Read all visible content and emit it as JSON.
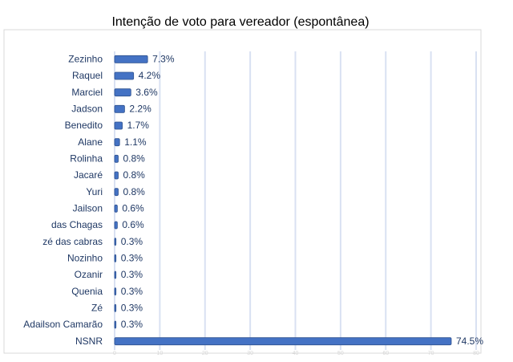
{
  "chart_data": {
    "type": "bar",
    "orientation": "horizontal",
    "title": "Intenção de voto para vereador (espontânea)",
    "categories": [
      "Zezinho",
      "Raquel",
      "Marciel",
      "Jadson",
      "Benedito",
      "Alane",
      "Rolinha",
      "Jacaré",
      "Yuri",
      "Jailson",
      "das Chagas",
      "zé das cabras",
      "Nozinho",
      "Ozanir",
      "Quenia",
      "Zé",
      "Adailson Camarão",
      "NSNR"
    ],
    "values": [
      7.3,
      4.2,
      3.6,
      2.2,
      1.7,
      1.1,
      0.8,
      0.8,
      0.8,
      0.6,
      0.6,
      0.3,
      0.3,
      0.3,
      0.3,
      0.3,
      0.3,
      74.5
    ],
    "value_labels": [
      "7.3%",
      "4.2%",
      "3.6%",
      "2.2%",
      "1.7%",
      "1.1%",
      "0.8%",
      "0.8%",
      "0.8%",
      "0.6%",
      "0.6%",
      "0.3%",
      "0.3%",
      "0.3%",
      "0.3%",
      "0.3%",
      "0.3%",
      "74.5%"
    ],
    "color": "#4472c4",
    "xlim": [
      0,
      80
    ],
    "xticks": [
      0,
      10,
      20,
      30,
      40,
      50,
      60,
      70,
      80
    ],
    "grid": true
  }
}
